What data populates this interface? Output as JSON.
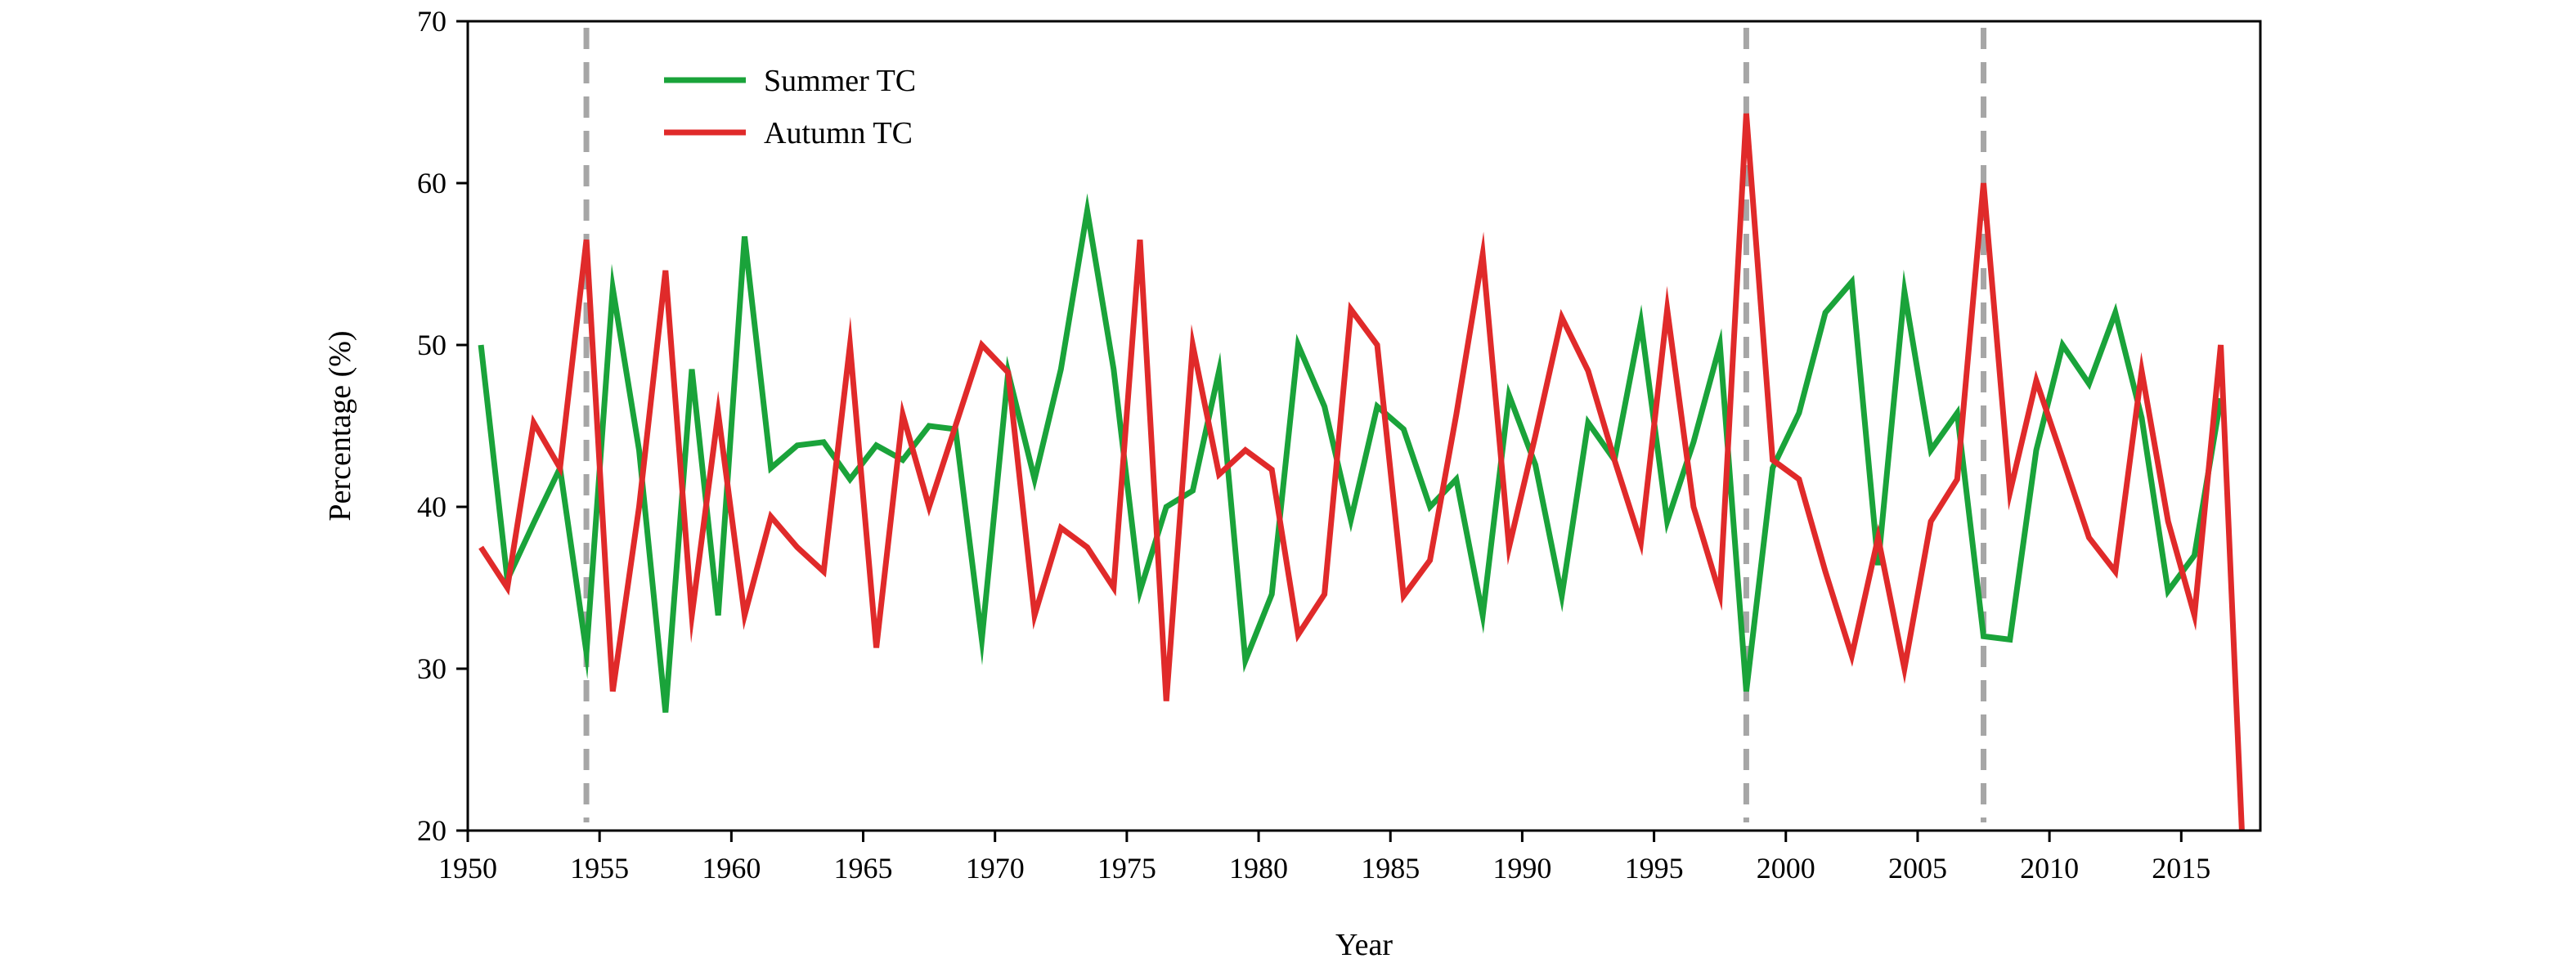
{
  "chart_data": {
    "type": "line",
    "title": "",
    "xlabel": "Year",
    "ylabel": "Percentage (%)",
    "xlim": [
      1950,
      2018
    ],
    "ylim": [
      20,
      70
    ],
    "xticks": [
      "1950",
      "1955",
      "1960",
      "1965",
      "1970",
      "1975",
      "1980",
      "1985",
      "1990",
      "1995",
      "2000",
      "2005",
      "2010",
      "2015"
    ],
    "yticks": [
      "20",
      "30",
      "40",
      "50",
      "60",
      "70"
    ],
    "grid": false,
    "legend_position": "top-left",
    "x": [
      1950.5,
      1951.5,
      1952.5,
      1953.5,
      1954.5,
      1955.5,
      1956.5,
      1957.5,
      1958.5,
      1959.5,
      1960.5,
      1961.5,
      1962.5,
      1963.5,
      1964.5,
      1965.5,
      1966.5,
      1967.5,
      1968.5,
      1969.5,
      1970.5,
      1971.5,
      1972.5,
      1973.5,
      1974.5,
      1975.5,
      1976.5,
      1977.5,
      1978.5,
      1979.5,
      1980.5,
      1981.5,
      1982.5,
      1983.5,
      1984.5,
      1985.5,
      1986.5,
      1987.5,
      1988.5,
      1989.5,
      1990.5,
      1991.5,
      1992.5,
      1993.5,
      1994.5,
      1995.5,
      1996.5,
      1997.5,
      1998.5,
      1999.5,
      2000.5,
      2001.5,
      2002.5,
      2003.5,
      2004.5,
      2005.5,
      2006.5,
      2007.5,
      2008.5,
      2009.5,
      2010.5,
      2011.5,
      2012.5,
      2013.5,
      2014.5,
      2015.5,
      2016.5,
      2017.3
    ],
    "series": [
      {
        "name": "Summer TC",
        "color": "#1aa33a",
        "values": [
          50.0,
          35.5,
          39.0,
          42.4,
          31.0,
          53.5,
          43.5,
          27.3,
          48.5,
          33.3,
          56.7,
          42.4,
          43.8,
          44.0,
          41.7,
          43.8,
          42.9,
          45.0,
          44.8,
          31.8,
          48.3,
          41.7,
          48.5,
          58.3,
          48.5,
          34.8,
          40.0,
          41.0,
          48.4,
          30.5,
          34.6,
          50.0,
          46.2,
          39.2,
          46.2,
          44.8,
          40.0,
          41.7,
          33.3,
          46.9,
          42.6,
          34.5,
          45.2,
          42.9,
          51.4,
          39.1,
          44.0,
          50.0,
          28.6,
          42.4,
          45.8,
          52.0,
          53.9,
          36.4,
          53.3,
          43.5,
          45.8,
          32.0,
          31.8,
          43.5,
          50.0,
          47.6,
          52.0,
          45.5,
          34.8,
          37.0,
          46.7,
          null
        ]
      },
      {
        "name": "Autumn TC",
        "color": "#e02a2a",
        "values": [
          37.5,
          35.0,
          45.2,
          42.4,
          56.5,
          28.6,
          40.0,
          54.6,
          33.3,
          45.8,
          33.3,
          39.4,
          37.5,
          36.0,
          50.0,
          31.3,
          45.7,
          40.0,
          45.0,
          50.0,
          48.3,
          33.3,
          38.7,
          37.5,
          35.0,
          56.5,
          28.0,
          50.0,
          42.0,
          43.5,
          42.3,
          32.1,
          34.6,
          52.2,
          50.0,
          34.5,
          36.7,
          45.7,
          55.6,
          37.5,
          44.4,
          51.7,
          48.4,
          42.9,
          37.8,
          52.2,
          40.0,
          34.6,
          64.3,
          42.9,
          41.7,
          36.0,
          30.8,
          38.1,
          30.0,
          39.1,
          41.7,
          60.0,
          40.9,
          47.8,
          43.0,
          38.1,
          36.0,
          48.4,
          39.1,
          33.3,
          50.0,
          20.0
        ]
      }
    ],
    "annotations": [
      {
        "type": "vertical-dashed-line",
        "x": 1954.5
      },
      {
        "type": "vertical-dashed-line",
        "x": 1998.5
      },
      {
        "type": "vertical-dashed-line",
        "x": 2007.5
      }
    ]
  }
}
